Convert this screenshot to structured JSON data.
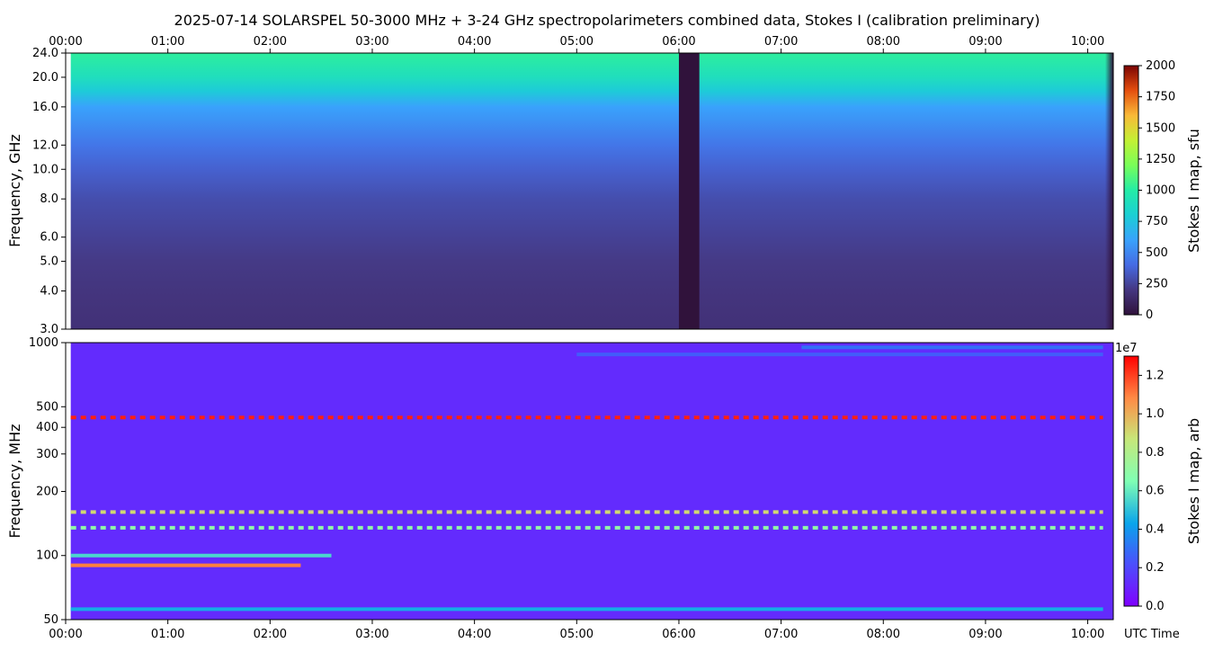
{
  "title": "2025-07-14  SOLARSPEL  50-3000 MHz  +  3-24 GHz  spectropolarimeters combined data,  Stokes I  (calibration preliminary)",
  "time_axis": {
    "ticks": [
      "00:00",
      "01:00",
      "02:00",
      "03:00",
      "04:00",
      "05:00",
      "06:00",
      "07:00",
      "08:00",
      "09:00",
      "10:00"
    ],
    "unit_label": "UTC Time"
  },
  "chart_data": [
    {
      "type": "heatmap",
      "panel": "top",
      "ylabel": "Frequency, GHz",
      "ylim": [
        3.0,
        24.0
      ],
      "yscale": "log",
      "yticks": [
        "3.0",
        "4.0",
        "5.0",
        "6.0",
        "8.0",
        "10.0",
        "12.0",
        "16.0",
        "20.0",
        "24.0"
      ],
      "xlim_hours": [
        0,
        10.25
      ],
      "data_start_hours": 0.05,
      "colorbar": {
        "label": "Stokes I map, sfu",
        "min": 0,
        "max": 2000,
        "ticks": [
          "0",
          "250",
          "500",
          "750",
          "1000",
          "1250",
          "1500",
          "1750",
          "2000"
        ],
        "colormap": "turbo"
      },
      "frequency_profile_ghz": [
        {
          "f": 3.0,
          "v": 170
        },
        {
          "f": 4.0,
          "v": 190
        },
        {
          "f": 5.0,
          "v": 210
        },
        {
          "f": 6.0,
          "v": 240
        },
        {
          "f": 8.0,
          "v": 290
        },
        {
          "f": 10.0,
          "v": 360
        },
        {
          "f": 12.0,
          "v": 440
        },
        {
          "f": 16.0,
          "v": 600
        },
        {
          "f": 18.0,
          "v": 780
        },
        {
          "f": 20.0,
          "v": 900
        },
        {
          "f": 24.0,
          "v": 1020
        }
      ],
      "data_gaps_hours": [
        [
          6.0,
          6.2
        ],
        [
          10.17,
          10.25
        ]
      ]
    },
    {
      "type": "heatmap",
      "panel": "bottom",
      "ylabel": "Frequency, MHz",
      "ylim": [
        50,
        1000
      ],
      "yscale": "log",
      "yticks": [
        "50",
        "100",
        "200",
        "300",
        "400",
        "500",
        "1000"
      ],
      "xlim_hours": [
        0,
        10.25
      ],
      "colorbar": {
        "label": "Stokes I map, arb",
        "offset_text": "1e7",
        "min": 0.0,
        "max": 1.3,
        "ticks": [
          "0.0",
          "0.2",
          "0.4",
          "0.6",
          "0.8",
          "1.0",
          "1.2"
        ],
        "colormap": "rainbow"
      },
      "background_level": 0.12,
      "bands_mhz": [
        {
          "f": 950,
          "v": 0.3,
          "t0": 7.2,
          "t1": 10.15
        },
        {
          "f": 880,
          "v": 0.25,
          "t0": 5.0,
          "t1": 10.15
        },
        {
          "f": 445,
          "v": 1.25,
          "t0": 0.05,
          "t1": 10.15,
          "dashed": true
        },
        {
          "f": 160,
          "v": 0.9,
          "t0": 0.05,
          "t1": 10.15,
          "dashed": true
        },
        {
          "f": 135,
          "v": 0.7,
          "t0": 0.05,
          "t1": 10.15,
          "dashed": true
        },
        {
          "f": 100,
          "v": 0.55,
          "t0": 0.05,
          "t1": 2.6
        },
        {
          "f": 90,
          "v": 1.1,
          "t0": 0.05,
          "t1": 2.3
        },
        {
          "f": 56,
          "v": 0.45,
          "t0": 0.05,
          "t1": 10.15
        }
      ]
    }
  ]
}
